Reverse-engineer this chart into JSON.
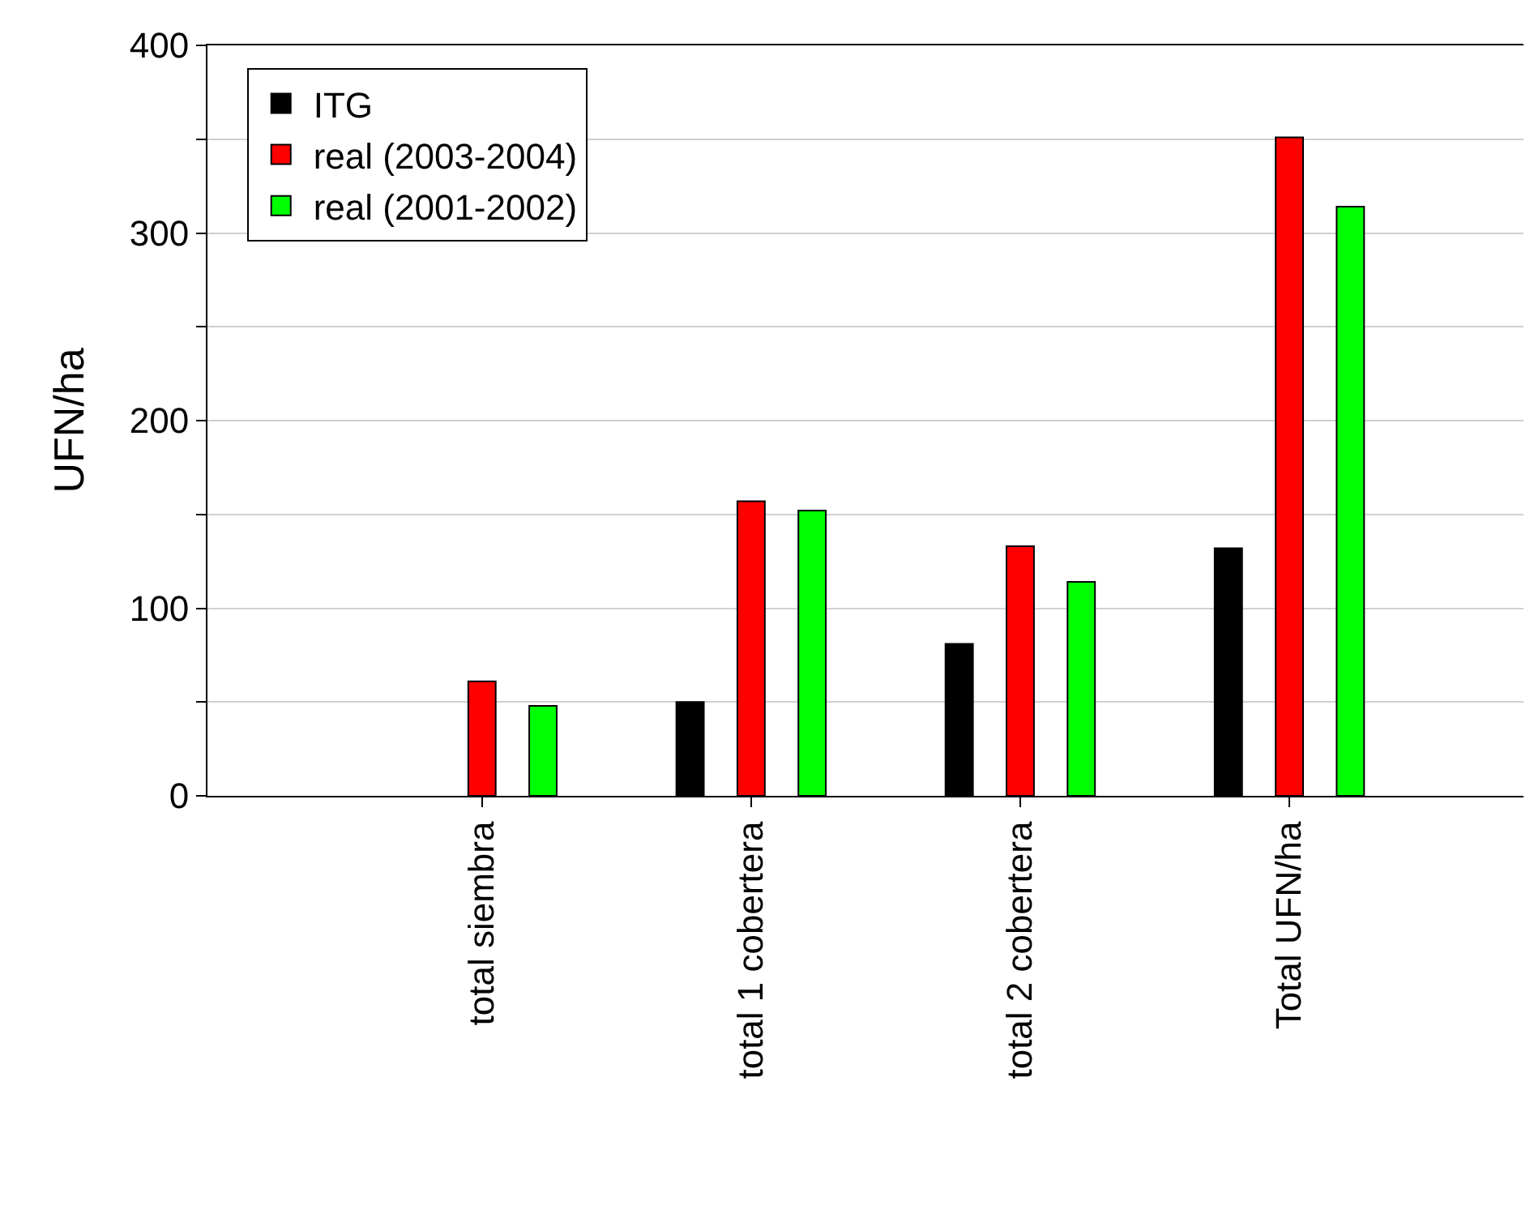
{
  "chart_data": {
    "type": "bar",
    "ylabel": "UFN/ha",
    "categories": [
      "total siembra",
      "total 1 cobertera",
      "total 2 cobertera",
      "Total UFN/ha"
    ],
    "series": [
      {
        "name": "ITG",
        "color": "#000000",
        "values": [
          null,
          50,
          81,
          132
        ]
      },
      {
        "name": "real (2003-2004)",
        "color": "#ff0000",
        "values": [
          61,
          157,
          133,
          351
        ]
      },
      {
        "name": "real (2001-2002)",
        "color": "#00ff00",
        "values": [
          48,
          152,
          114,
          314
        ]
      }
    ],
    "ylim": [
      0,
      400
    ],
    "yticks": [
      0,
      {
        "value": 50,
        "label": null
      },
      100,
      {
        "value": 150,
        "label": null
      },
      200,
      {
        "value": 250,
        "label": null
      },
      300,
      {
        "value": 350,
        "label": null
      },
      400
    ],
    "grid": "y",
    "legend": "top left"
  }
}
